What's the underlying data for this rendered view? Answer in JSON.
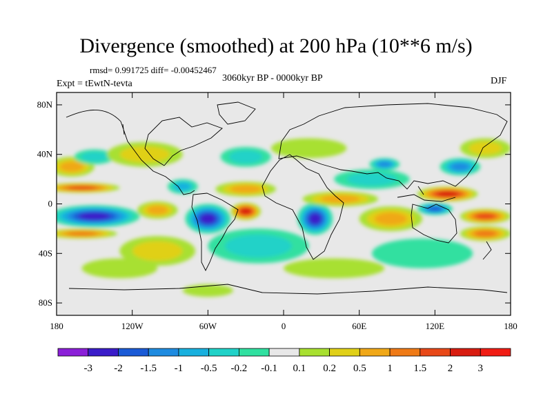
{
  "chart_data": {
    "type": "heatmap",
    "title": "Divergence (smoothed) at 200 hPa (10**6 m/s)",
    "stats_line": "rmsd= 0.991725 diff= -0.00452467",
    "period": "3060kyr BP - 0000kyr BP",
    "experiment": "Expt = tEwtN-tevta",
    "season": "DJF",
    "x_ticks": [
      "180",
      "120W",
      "60W",
      "0",
      "60E",
      "120E",
      "180"
    ],
    "x_tick_values": [
      -180,
      -120,
      -60,
      0,
      60,
      120,
      180
    ],
    "y_ticks": [
      "80N",
      "40N",
      "0",
      "40S",
      "80S"
    ],
    "y_tick_values": [
      80,
      40,
      0,
      -40,
      -80
    ],
    "xlim": [
      -180,
      180
    ],
    "ylim": [
      -90,
      90
    ],
    "colorbar": {
      "labels": [
        "-3",
        "-2",
        "-1.5",
        "-1",
        "-0.5",
        "-0.2",
        "-0.1",
        "0.1",
        "0.2",
        "0.5",
        "1",
        "1.5",
        "2",
        "3"
      ],
      "colors": [
        "#8b1fd8",
        "#3a1cc9",
        "#1a5ad6",
        "#1e8be0",
        "#18b0de",
        "#20d2c8",
        "#30e0a0",
        "#e8e8e8",
        "#a8e030",
        "#e0d018",
        "#f0a818",
        "#ef7a16",
        "#e84818",
        "#d81c10",
        "#f01c14"
      ]
    },
    "features": [
      {
        "lon": -150,
        "lat": -10,
        "value": -3.0,
        "wlon": 36,
        "wlat": 9
      },
      {
        "lon": -160,
        "lat": 13,
        "value": 2.0,
        "wlon": 30,
        "wlat": 4
      },
      {
        "lon": -160,
        "lat": -24,
        "value": 1.5,
        "wlon": 28,
        "wlat": 4
      },
      {
        "lon": -168,
        "lat": 30,
        "value": 0.8,
        "wlon": 18,
        "wlat": 8
      },
      {
        "lon": -150,
        "lat": 38,
        "value": -0.4,
        "wlon": 16,
        "wlat": 6
      },
      {
        "lon": -100,
        "lat": -5,
        "value": 1.2,
        "wlon": 16,
        "wlat": 7
      },
      {
        "lon": -80,
        "lat": 14,
        "value": -1.0,
        "wlon": 12,
        "wlat": 6
      },
      {
        "lon": -60,
        "lat": -12,
        "value": -2.8,
        "wlon": 18,
        "wlat": 12
      },
      {
        "lon": -30,
        "lat": -6,
        "value": 2.6,
        "wlon": 12,
        "wlat": 7
      },
      {
        "lon": -30,
        "lat": 12,
        "value": 0.8,
        "wlon": 24,
        "wlat": 6
      },
      {
        "lon": -20,
        "lat": -34,
        "value": -0.6,
        "wlon": 40,
        "wlat": 14
      },
      {
        "lon": -100,
        "lat": -38,
        "value": 0.6,
        "wlon": 30,
        "wlat": 12
      },
      {
        "lon": -110,
        "lat": 40,
        "value": 0.6,
        "wlon": 30,
        "wlat": 10
      },
      {
        "lon": -30,
        "lat": 38,
        "value": -0.5,
        "wlon": 20,
        "wlat": 8
      },
      {
        "lon": 25,
        "lat": -12,
        "value": -2.9,
        "wlon": 14,
        "wlat": 13
      },
      {
        "lon": 45,
        "lat": 4,
        "value": 1.2,
        "wlon": 30,
        "wlat": 6
      },
      {
        "lon": 70,
        "lat": 20,
        "value": -0.6,
        "wlon": 30,
        "wlat": 8
      },
      {
        "lon": 80,
        "lat": 32,
        "value": -1.5,
        "wlon": 12,
        "wlat": 5
      },
      {
        "lon": 85,
        "lat": -12,
        "value": 1.0,
        "wlon": 25,
        "wlat": 10
      },
      {
        "lon": 130,
        "lat": 8,
        "value": 2.8,
        "wlon": 24,
        "wlat": 6
      },
      {
        "lon": 120,
        "lat": -4,
        "value": -2.0,
        "wlon": 14,
        "wlat": 5
      },
      {
        "lon": 160,
        "lat": -10,
        "value": 2.4,
        "wlon": 20,
        "wlat": 6
      },
      {
        "lon": 160,
        "lat": -24,
        "value": 1.4,
        "wlon": 20,
        "wlat": 6
      },
      {
        "lon": 140,
        "lat": 30,
        "value": -1.5,
        "wlon": 16,
        "wlat": 7
      },
      {
        "lon": 160,
        "lat": 45,
        "value": 0.6,
        "wlon": 20,
        "wlat": 8
      },
      {
        "lon": 110,
        "lat": -40,
        "value": -0.3,
        "wlon": 40,
        "wlat": 12
      },
      {
        "lon": 40,
        "lat": -52,
        "value": 0.2,
        "wlon": 40,
        "wlat": 8
      },
      {
        "lon": -130,
        "lat": -52,
        "value": 0.2,
        "wlon": 30,
        "wlat": 8
      },
      {
        "lon": 20,
        "lat": 45,
        "value": 0.2,
        "wlon": 30,
        "wlat": 8
      },
      {
        "lon": -60,
        "lat": -70,
        "value": 0.15,
        "wlon": 20,
        "wlat": 5
      }
    ]
  }
}
